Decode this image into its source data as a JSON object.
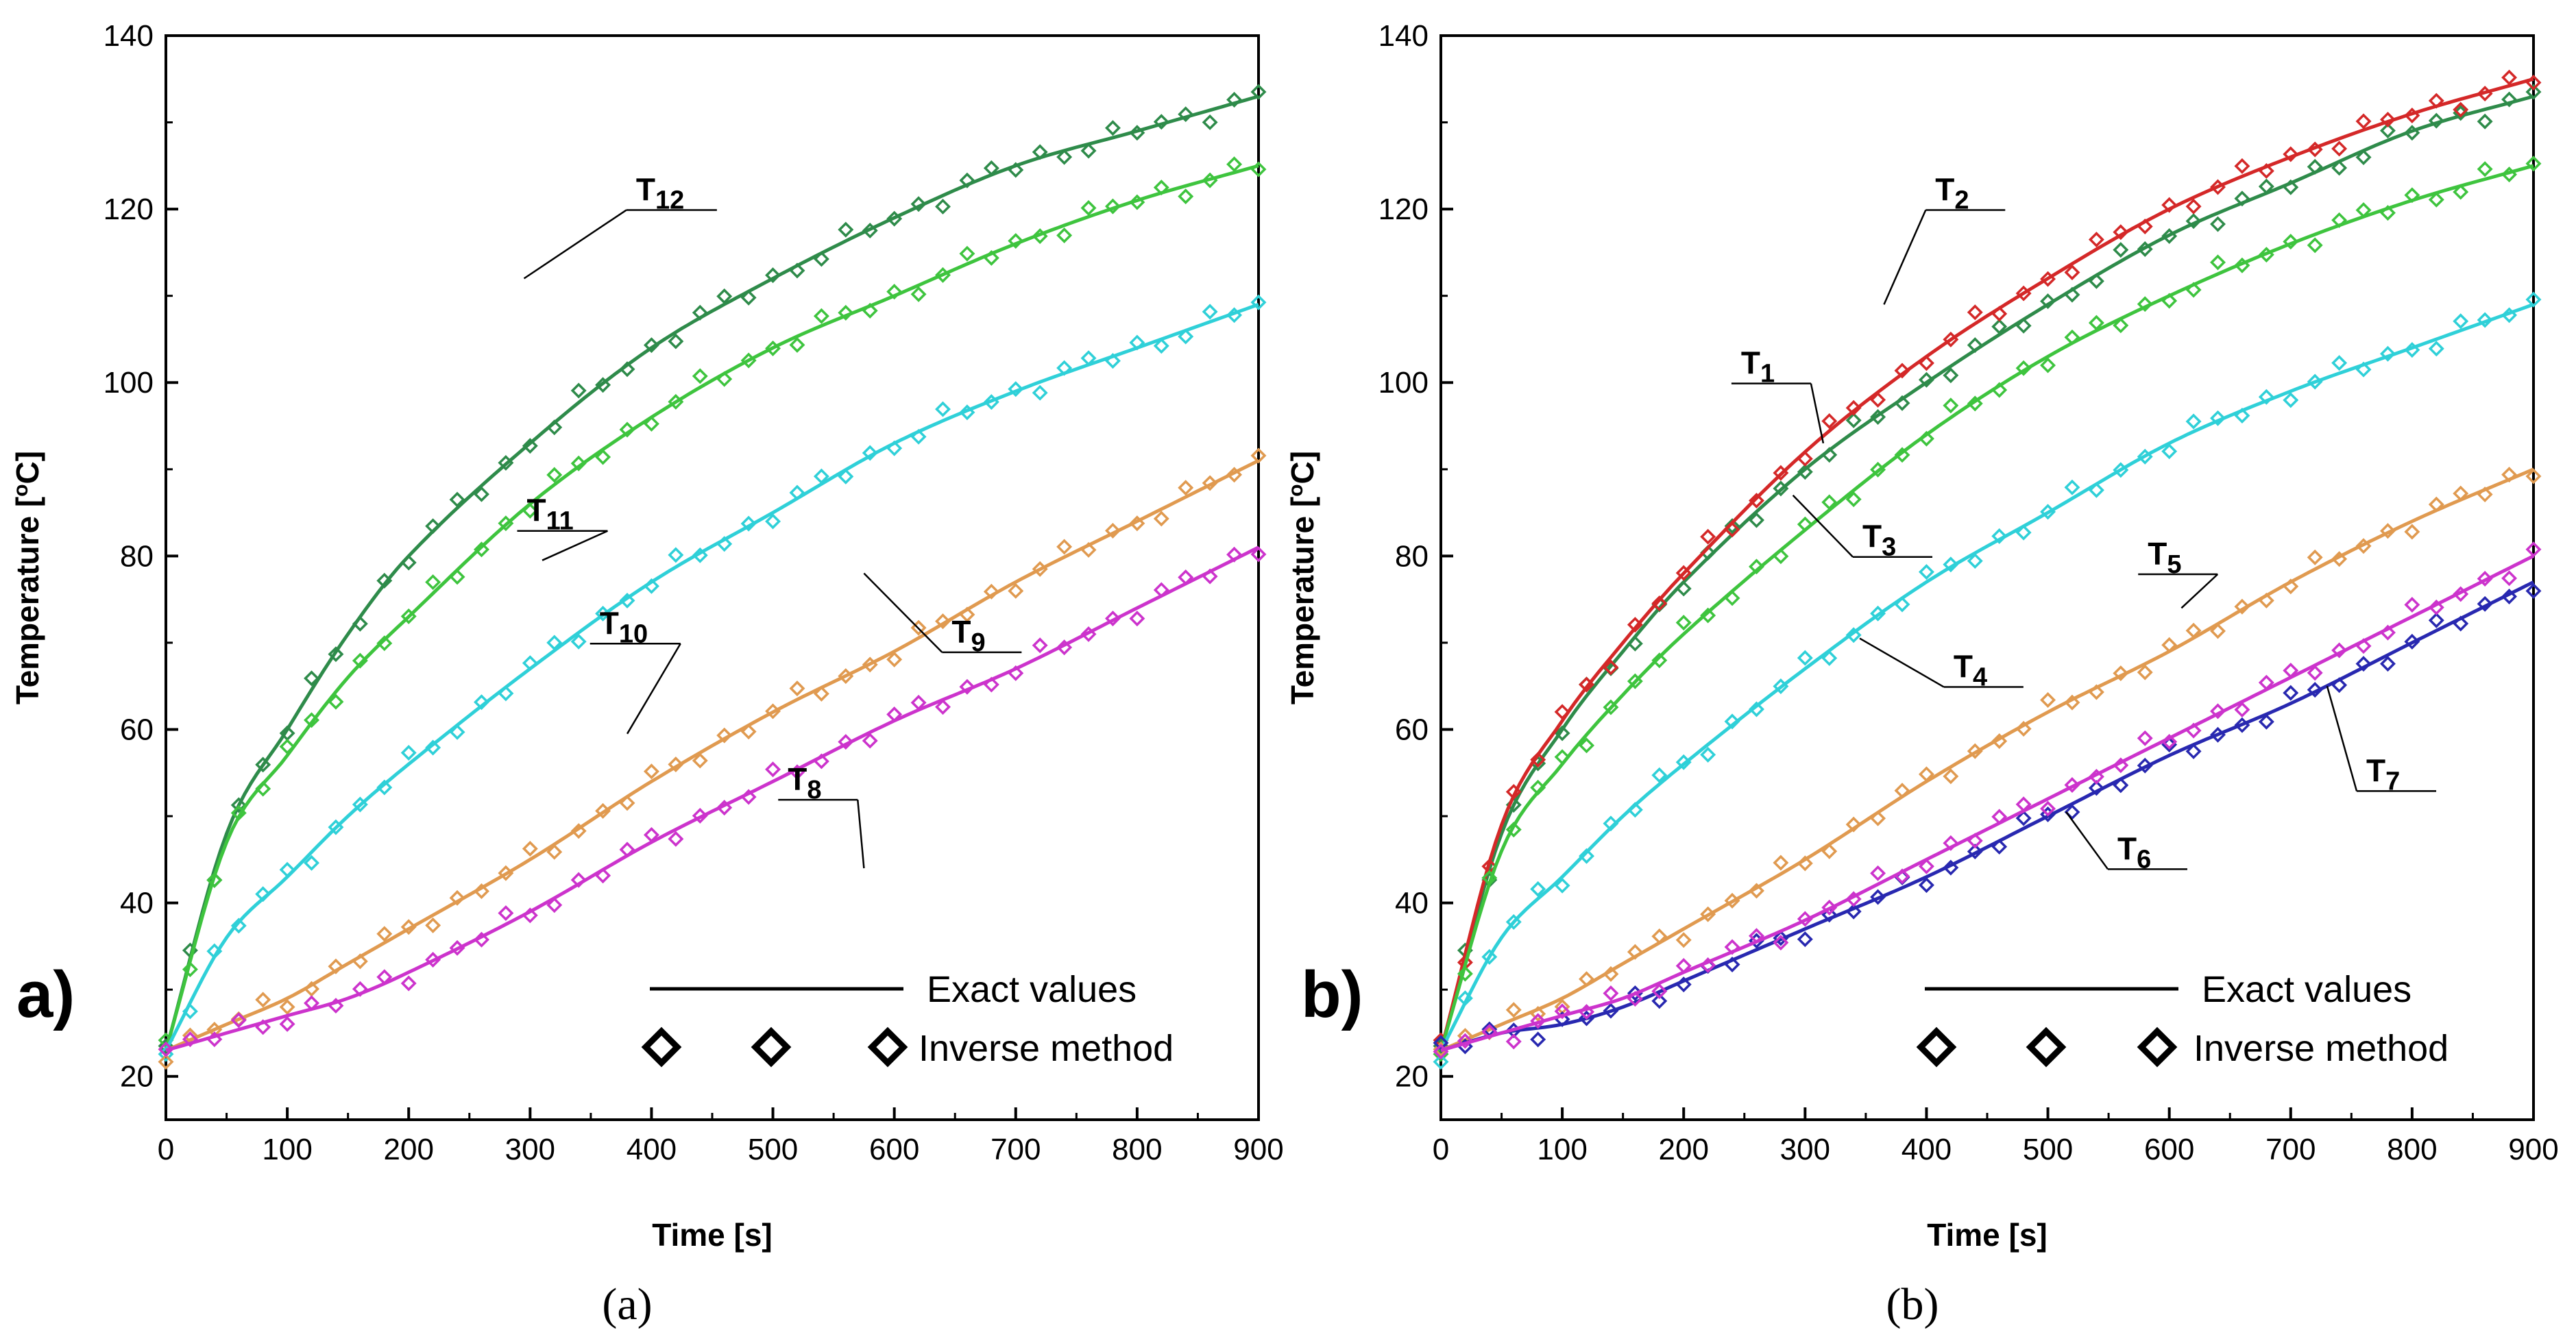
{
  "panel_a": {
    "label": "a)",
    "caption": "(a)",
    "xlabel": "Time [s]",
    "ylabel": "Temperature [",
    "ylabel_unit": "o",
    "ylabel_end": "C]",
    "legend": {
      "line": "Exact values",
      "marker": "Inverse method"
    }
  },
  "panel_b": {
    "label": "b)",
    "caption": "(b)",
    "xlabel": "Time [s]",
    "ylabel": "Temperature [",
    "ylabel_unit": "o",
    "ylabel_end": "C]",
    "legend": {
      "line": "Exact values",
      "marker": "Inverse method"
    }
  },
  "chart_data": [
    {
      "type": "line",
      "title": "",
      "xlabel": "Time [s]",
      "ylabel": "Temperature [oC]",
      "xlim": [
        0,
        900
      ],
      "ylim": [
        15,
        140
      ],
      "xticks": [
        0,
        100,
        200,
        300,
        400,
        500,
        600,
        700,
        800,
        900
      ],
      "yticks": [
        20,
        40,
        60,
        80,
        100,
        120,
        140
      ],
      "legend": [
        "Exact values",
        "Inverse method"
      ],
      "x": [
        0,
        50,
        100,
        150,
        200,
        300,
        400,
        500,
        600,
        700,
        800,
        900
      ],
      "series": [
        {
          "name": "T12",
          "label_main": "T",
          "label_sub": "12",
          "color": "#2e8b4a",
          "values": [
            23,
            48,
            60,
            71,
            80,
            93,
            104,
            112,
            119,
            125,
            129,
            133
          ]
        },
        {
          "name": "T11",
          "label_main": "T",
          "label_sub": "11",
          "color": "#3ec43e",
          "values": [
            23,
            47,
            57,
            66,
            73,
            86,
            96,
            104,
            110,
            116,
            121,
            125
          ]
        },
        {
          "name": "T10",
          "label_main": "T",
          "label_sub": "10",
          "color": "#2fd0d8",
          "values": [
            23,
            36,
            43,
            50,
            56,
            67,
            77,
            85,
            93,
            99,
            104,
            109
          ]
        },
        {
          "name": "T9",
          "label_main": "T",
          "label_sub": "9",
          "color": "#e09a50",
          "values": [
            23,
            26,
            29,
            33,
            37,
            45,
            54,
            62,
            69,
            77,
            84,
            91
          ]
        },
        {
          "name": "T8",
          "label_main": "T",
          "label_sub": "8",
          "color": "#cc33cc",
          "values": [
            23,
            25,
            27,
            29,
            32,
            39,
            47,
            54,
            61,
            67,
            74,
            81
          ]
        }
      ],
      "labels": [
        {
          "series": "T12",
          "lx": 295,
          "ly": 112,
          "tx": 385,
          "ty": 121
        },
        {
          "series": "T11",
          "lx": 310,
          "ly": 79.5,
          "tx": 295,
          "ty": 84
        },
        {
          "series": "T10",
          "lx": 380,
          "ly": 59.5,
          "tx": 355,
          "ty": 71
        },
        {
          "series": "T9",
          "lx": 575,
          "ly": 78,
          "tx": 645,
          "ty": 70
        },
        {
          "series": "T8",
          "lx": 575,
          "ly": 44,
          "tx": 510,
          "ty": 53
        }
      ]
    },
    {
      "type": "line",
      "title": "",
      "xlabel": "Time [s]",
      "ylabel": "Temperature [oC]",
      "xlim": [
        0,
        900
      ],
      "ylim": [
        15,
        140
      ],
      "xticks": [
        0,
        100,
        200,
        300,
        400,
        500,
        600,
        700,
        800,
        900
      ],
      "yticks": [
        20,
        40,
        60,
        80,
        100,
        120,
        140
      ],
      "legend": [
        "Exact values",
        "Inverse method"
      ],
      "x": [
        0,
        50,
        100,
        150,
        200,
        300,
        400,
        500,
        600,
        700,
        800,
        900
      ],
      "series": [
        {
          "name": "T1",
          "label_main": "T",
          "label_sub": "1",
          "color": "#2e8b4a",
          "values": [
            23,
            48,
            60,
            69,
            77,
            90,
            100,
            109,
            117,
            123,
            129,
            133
          ]
        },
        {
          "name": "T2",
          "label_main": "T",
          "label_sub": "2",
          "color": "#d42828",
          "values": [
            23,
            49,
            61,
            70,
            78,
            92,
            103,
            112,
            120,
            126,
            131,
            135
          ]
        },
        {
          "name": "T3",
          "label_main": "T",
          "label_sub": "3",
          "color": "#3ec43e",
          "values": [
            23,
            46,
            56,
            64,
            71,
            83,
            94,
            103,
            110,
            116,
            121,
            125
          ]
        },
        {
          "name": "T4",
          "label_main": "T",
          "label_sub": "4",
          "color": "#2fd0d8",
          "values": [
            23,
            36,
            43,
            50,
            56,
            67,
            77,
            85,
            93,
            99,
            104,
            109
          ]
        },
        {
          "name": "T5",
          "label_main": "T",
          "label_sub": "5",
          "color": "#e09a50",
          "values": [
            23,
            26,
            29,
            33,
            37,
            45,
            54,
            62,
            69,
            77,
            84,
            90
          ]
        },
        {
          "name": "T6",
          "label_main": "T",
          "label_sub": "6",
          "color": "#2828b0",
          "values": [
            23,
            25,
            26,
            28,
            31,
            37,
            43,
            50,
            57,
            63,
            70,
            77
          ]
        },
        {
          "name": "T7",
          "label_main": "T",
          "label_sub": "7",
          "color": "#cc33cc",
          "values": [
            23,
            25,
            27,
            29,
            32,
            38,
            45,
            52,
            59,
            66,
            73,
            80
          ]
        }
      ],
      "labels": [
        {
          "series": "T1",
          "lx": 315,
          "ly": 93,
          "tx": 245,
          "ty": 101
        },
        {
          "series": "T2",
          "lx": 365,
          "ly": 109,
          "tx": 405,
          "ty": 121
        },
        {
          "series": "T3",
          "lx": 290,
          "ly": 87,
          "tx": 345,
          "ty": 81
        },
        {
          "series": "T4",
          "lx": 345,
          "ly": 70.5,
          "tx": 420,
          "ty": 66
        },
        {
          "series": "T5",
          "lx": 610,
          "ly": 74,
          "tx": 580,
          "ty": 79
        },
        {
          "series": "T6",
          "lx": 515,
          "ly": 50.5,
          "tx": 555,
          "ty": 45
        },
        {
          "series": "T7",
          "lx": 730,
          "ly": 65,
          "tx": 760,
          "ty": 54
        }
      ]
    }
  ]
}
